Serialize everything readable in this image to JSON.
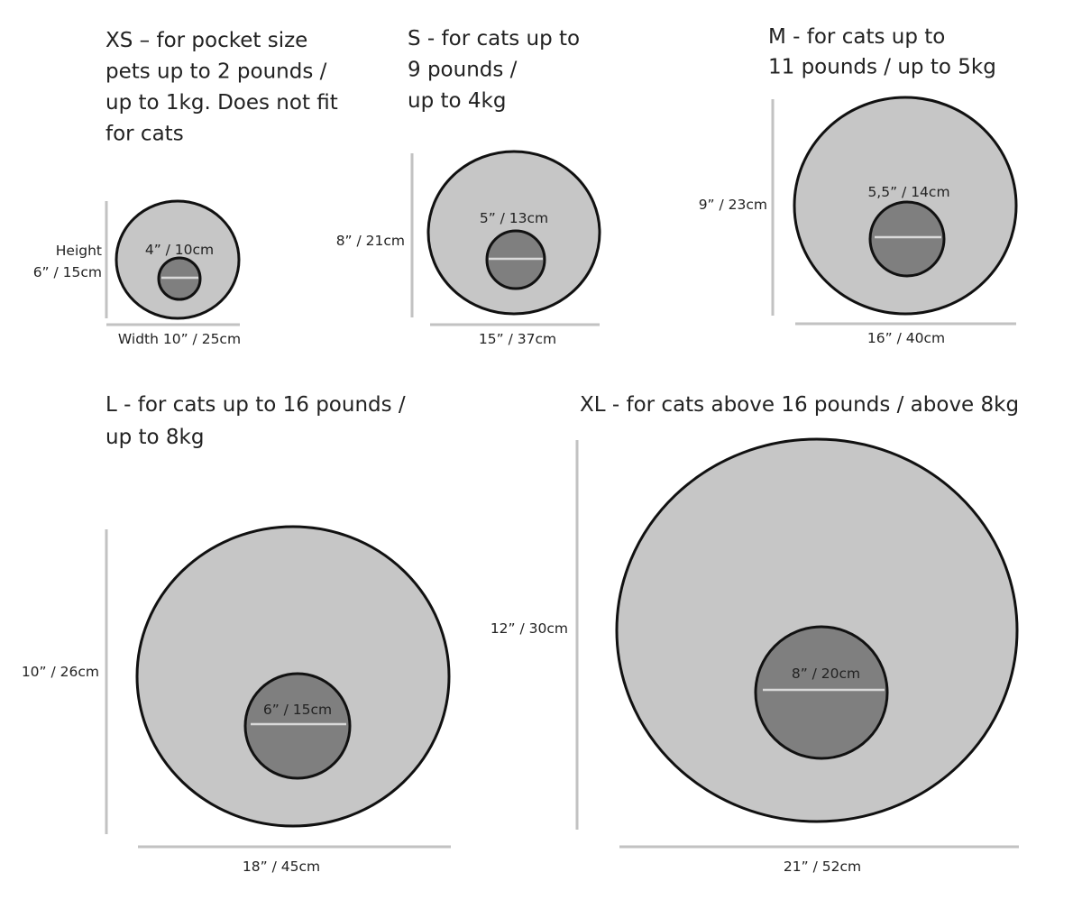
{
  "colors": {
    "outer_fill": "#c6c6c6",
    "inner_fill": "#7f7f7f",
    "outline": "#111111",
    "guide": "#c2c2c2",
    "inner_line": "#d9d9d9"
  },
  "sizes": [
    {
      "id": "xs",
      "title_lines": [
        "XS – for pocket size",
        "pets up to 2 pounds /",
        "up to 1kg. Does not fit",
        "for cats"
      ],
      "height_label": [
        "Height",
        "6” / 15cm"
      ],
      "width_label": "Width 10” / 25cm",
      "opening_label": "4” / 10cm"
    },
    {
      "id": "s",
      "title_lines": [
        "S - for cats up to",
        "9 pounds /",
        "up to 4kg"
      ],
      "height_label": [
        "8” / 21cm"
      ],
      "width_label": "15” / 37cm",
      "opening_label": "5” / 13cm"
    },
    {
      "id": "m",
      "title_lines": [
        "M - for cats up to",
        "11 pounds / up to 5kg"
      ],
      "height_label": [
        "9” / 23cm"
      ],
      "width_label": "16” / 40cm",
      "opening_label": "5,5” / 14cm"
    },
    {
      "id": "l",
      "title_lines": [
        "L - for cats up to 16 pounds /",
        "up to 8kg"
      ],
      "height_label": [
        "10” / 26cm"
      ],
      "width_label": "18” / 45cm",
      "opening_label": "6” / 15cm"
    },
    {
      "id": "xl",
      "title_lines": [
        "XL - for cats above 16 pounds / above 8kg"
      ],
      "height_label": [
        "12” / 30cm"
      ],
      "width_label": "21” / 52cm",
      "opening_label": "8” / 20cm"
    }
  ]
}
